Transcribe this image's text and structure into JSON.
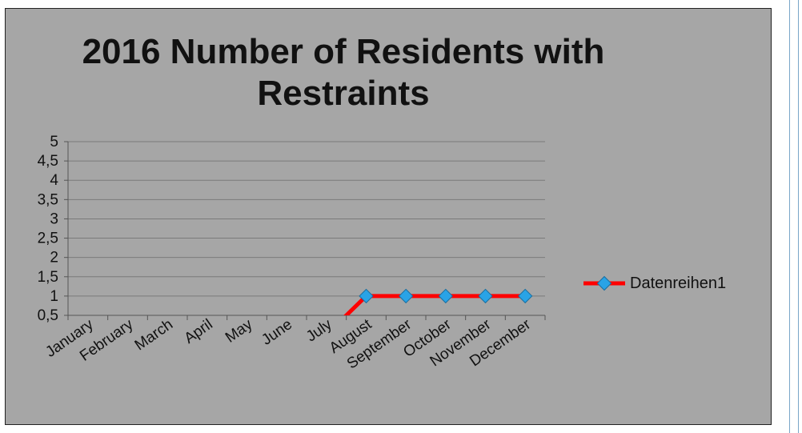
{
  "chart_data": {
    "type": "line",
    "title": "2016 Number of Residents with Restraints",
    "categories": [
      "January",
      "February",
      "March",
      "April",
      "May",
      "June",
      "July",
      "August",
      "September",
      "October",
      "November",
      "December"
    ],
    "series": [
      {
        "name": "Datenreihen1",
        "values": [
          null,
          null,
          null,
          null,
          null,
          null,
          0,
          1,
          1,
          1,
          1,
          1
        ],
        "color": "#ff0000",
        "marker_color": "#29a3e6"
      }
    ],
    "yticks": [
      "0,5",
      "1",
      "1,5",
      "2",
      "2,5",
      "3",
      "3,5",
      "4",
      "4,5",
      "5"
    ],
    "ylim": [
      0.5,
      5
    ],
    "grid": true,
    "legend_position": "right"
  }
}
